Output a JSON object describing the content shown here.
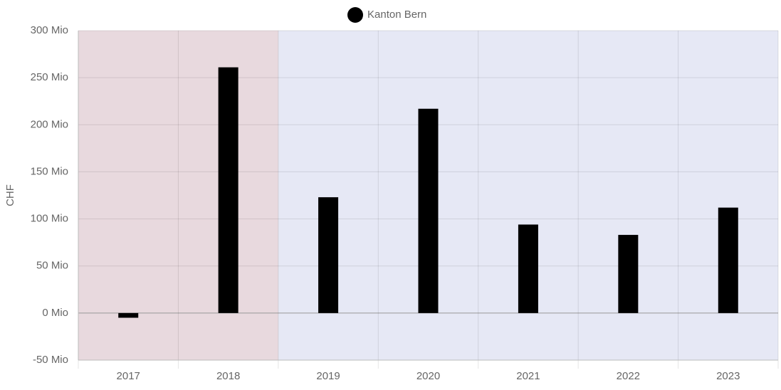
{
  "chart_data": {
    "type": "bar",
    "legend_title": "Kanton Bern",
    "y_label": "CHF",
    "categories": [
      "2017",
      "2018",
      "2019",
      "2020",
      "2021",
      "2022",
      "2023"
    ],
    "series": [
      {
        "name": "Kanton Bern",
        "color": "#000000",
        "values": [
          -5,
          261,
          123,
          217,
          94,
          83,
          112
        ]
      }
    ],
    "ylim": [
      -50,
      300
    ],
    "yticks": [
      {
        "value": -50,
        "label": "-50 Mio"
      },
      {
        "value": 0,
        "label": "0 Mio"
      },
      {
        "value": 50,
        "label": "50 Mio"
      },
      {
        "value": 100,
        "label": "100 Mio"
      },
      {
        "value": 150,
        "label": "150 Mio"
      },
      {
        "value": 200,
        "label": "200 Mio"
      },
      {
        "value": 250,
        "label": "250 Mio"
      },
      {
        "value": 300,
        "label": "300 Mio"
      }
    ],
    "grid": true,
    "legend": "top"
  }
}
